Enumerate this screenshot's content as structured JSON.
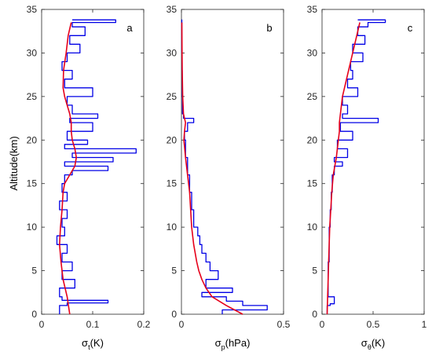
{
  "colors": {
    "raw": "#0000e6",
    "smooth": "#e6001a",
    "axes": "#262626"
  },
  "ylabel": "Altitude(km)",
  "chart_data": [
    {
      "type": "line",
      "panel": "a",
      "xlabel": {
        "main": "σ",
        "sub": "t",
        "unit": "(K)"
      },
      "ylabel": "Altitude(km)",
      "xlim": [
        0,
        0.2
      ],
      "ylim": [
        0,
        35
      ],
      "xticks": [
        "0",
        "0.1",
        "0.2"
      ],
      "yticks": [
        "0",
        "5",
        "10",
        "15",
        "20",
        "25",
        "30",
        "35"
      ],
      "series": [
        {
          "role": "raw",
          "altitude": [
            0,
            1,
            1.3,
            1.6,
            2,
            3,
            4,
            5,
            6,
            7,
            8,
            9,
            10,
            11,
            12,
            13,
            14,
            15,
            16,
            16.5,
            17,
            17.5,
            18,
            18.5,
            19,
            19.5,
            20,
            21,
            22,
            22.5,
            23,
            24,
            25,
            26,
            27,
            28,
            29,
            30,
            31,
            32,
            33,
            33.5,
            33.8
          ],
          "value": [
            0.035,
            0.05,
            0.13,
            0.04,
            0.035,
            0.065,
            0.04,
            0.06,
            0.04,
            0.05,
            0.03,
            0.045,
            0.04,
            0.05,
            0.035,
            0.05,
            0.04,
            0.045,
            0.06,
            0.13,
            0.045,
            0.14,
            0.06,
            0.185,
            0.045,
            0.09,
            0.05,
            0.1,
            0.055,
            0.11,
            0.06,
            0.05,
            0.1,
            0.045,
            0.06,
            0.04,
            0.05,
            0.075,
            0.055,
            0.085,
            0.06,
            0.145,
            0.06
          ]
        },
        {
          "role": "smooth",
          "altitude": [
            0,
            2,
            4,
            6,
            8,
            10,
            12,
            14,
            15,
            16,
            17,
            18,
            19,
            20,
            21,
            22,
            23,
            24,
            25,
            26,
            28,
            30,
            32,
            33.5
          ],
          "value": [
            0.055,
            0.05,
            0.042,
            0.038,
            0.035,
            0.037,
            0.04,
            0.042,
            0.045,
            0.055,
            0.065,
            0.068,
            0.065,
            0.06,
            0.058,
            0.058,
            0.055,
            0.05,
            0.045,
            0.042,
            0.043,
            0.048,
            0.052,
            0.058
          ]
        }
      ]
    },
    {
      "type": "line",
      "panel": "b",
      "xlabel": {
        "main": "σ",
        "sub": "p",
        "unit": "(hPa)"
      },
      "xlim": [
        0,
        0.5
      ],
      "ylim": [
        0,
        35
      ],
      "xticks": [
        "0",
        "0.5"
      ],
      "yticks": [
        "0",
        "5",
        "10",
        "15",
        "20",
        "25",
        "30",
        "35"
      ],
      "series": [
        {
          "role": "raw",
          "altitude": [
            0,
            0.5,
            1,
            1.5,
            2,
            2.5,
            3,
            4,
            5,
            6,
            7,
            8,
            9,
            10,
            12,
            14,
            16,
            18,
            20,
            21,
            22,
            22.5,
            23,
            25,
            28,
            30,
            33.8
          ],
          "value": [
            0.2,
            0.42,
            0.3,
            0.22,
            0.1,
            0.25,
            0.12,
            0.18,
            0.14,
            0.12,
            0.1,
            0.09,
            0.08,
            0.06,
            0.05,
            0.04,
            0.03,
            0.02,
            0.015,
            0.03,
            0.06,
            0.01,
            0.005,
            0.004,
            0.003,
            0.002,
            0.001
          ]
        },
        {
          "role": "smooth",
          "altitude": [
            0,
            1,
            2,
            3,
            4,
            5,
            6,
            8,
            10,
            12,
            14,
            16,
            18,
            20,
            21,
            22,
            23,
            25,
            28,
            30,
            33.5
          ],
          "value": [
            0.3,
            0.22,
            0.15,
            0.12,
            0.1,
            0.085,
            0.075,
            0.06,
            0.05,
            0.045,
            0.04,
            0.03,
            0.02,
            0.012,
            0.015,
            0.02,
            0.01,
            0.006,
            0.004,
            0.003,
            0.002
          ]
        }
      ]
    },
    {
      "type": "line",
      "panel": "c",
      "xlabel": {
        "main": "σ",
        "sub": "θ",
        "unit": "(K)"
      },
      "xlim": [
        0,
        1
      ],
      "ylim": [
        0,
        35
      ],
      "xticks": [
        "0",
        "0.5",
        "1"
      ],
      "yticks": [
        "0",
        "5",
        "10",
        "15",
        "20",
        "25",
        "30",
        "35"
      ],
      "series": [
        {
          "role": "raw",
          "altitude": [
            0,
            1,
            1.2,
            2,
            4,
            6,
            8,
            10,
            12,
            14,
            16,
            17,
            17.5,
            18,
            19,
            20,
            21,
            22,
            22.5,
            23,
            24,
            25,
            26,
            27,
            28,
            29,
            30,
            31,
            32,
            33,
            33.5,
            33.8
          ],
          "value": [
            0.05,
            0.08,
            0.12,
            0.06,
            0.06,
            0.07,
            0.07,
            0.08,
            0.09,
            0.1,
            0.12,
            0.2,
            0.12,
            0.25,
            0.15,
            0.3,
            0.18,
            0.55,
            0.2,
            0.25,
            0.2,
            0.35,
            0.25,
            0.3,
            0.28,
            0.4,
            0.3,
            0.42,
            0.35,
            0.45,
            0.62,
            0.35
          ]
        },
        {
          "role": "smooth",
          "altitude": [
            0,
            2,
            4,
            6,
            8,
            10,
            12,
            14,
            16,
            18,
            19,
            20,
            21,
            22,
            23,
            24,
            25,
            26,
            27,
            28,
            29,
            30,
            31,
            32,
            33,
            33.5
          ],
          "value": [
            0.05,
            0.055,
            0.06,
            0.065,
            0.07,
            0.075,
            0.085,
            0.095,
            0.11,
            0.14,
            0.15,
            0.16,
            0.17,
            0.17,
            0.18,
            0.19,
            0.2,
            0.22,
            0.24,
            0.26,
            0.28,
            0.3,
            0.32,
            0.34,
            0.36,
            0.37
          ]
        }
      ]
    }
  ]
}
